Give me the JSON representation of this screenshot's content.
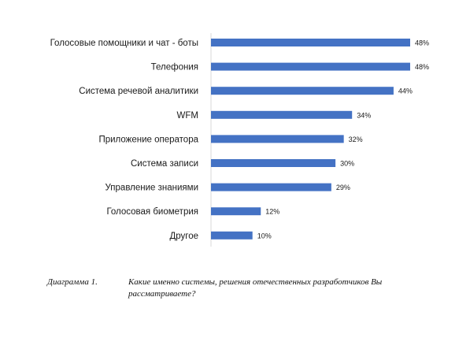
{
  "chart_data": {
    "type": "bar",
    "orientation": "horizontal",
    "categories": [
      "Голосовые помощники и чат - боты",
      "Телефония",
      "Система речевой аналитики",
      "WFM",
      "Приложение оператора",
      "Система записи",
      "Управление знаниями",
      "Голосовая биометрия",
      "Другое"
    ],
    "values": [
      48,
      48,
      44,
      34,
      32,
      30,
      29,
      12,
      10
    ],
    "value_labels": [
      "48%",
      "48%",
      "44%",
      "34%",
      "32%",
      "30%",
      "29%",
      "12%",
      "10%"
    ],
    "value_unit": "%",
    "xlim": [
      0,
      50
    ],
    "grid": false,
    "legend": "none",
    "bar_color": "#4472C4"
  },
  "caption": {
    "number": "Диаграмма 1.",
    "text": "Какие именно системы, решения отечественных разработчиков Вы рассматриваете?"
  }
}
